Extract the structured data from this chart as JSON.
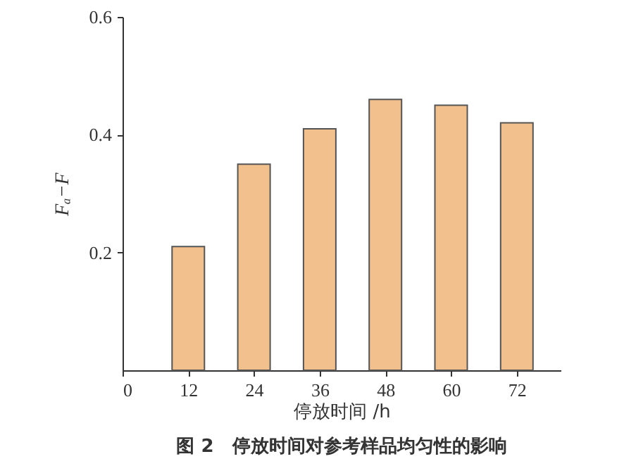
{
  "chart_data": {
    "type": "bar",
    "title": "图 2　停放时间对参考样品均匀性的影响",
    "xlabel": "停放时间 /h",
    "ylabel": "Fₐ−F",
    "x": [
      12,
      24,
      36,
      48,
      60,
      72
    ],
    "values": [
      0.21,
      0.35,
      0.41,
      0.46,
      0.45,
      0.42
    ],
    "color": "#f2c08c",
    "xlim": [
      0,
      80
    ],
    "xticks": [
      0,
      12,
      24,
      36,
      48,
      60,
      72
    ],
    "ylim": [
      0,
      0.6
    ],
    "yticks": [
      0.2,
      0.4,
      0.6
    ],
    "grid": false
  }
}
